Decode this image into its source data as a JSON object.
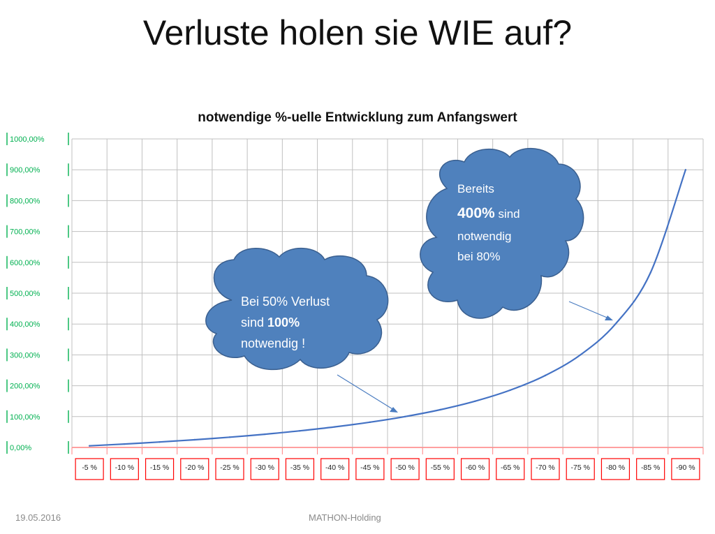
{
  "slide": {
    "title": "Verluste holen sie WIE auf?",
    "footer_date": "19.05.2016",
    "footer_center": "MATHON-Holding"
  },
  "colors": {
    "line": "#4472c4",
    "grid": "#c0c0c0",
    "ytick": "#00b050",
    "xtick_box": "#ff0000",
    "cloud_fill": "#4f81bd",
    "cloud_stroke": "#3a5f8f",
    "arrow": "#4a7cc0"
  },
  "annotations": {
    "cloud_left": {
      "line1": "Bei 50% Verlust",
      "line2_pre": "sind ",
      "line2_bold": "100%",
      "line3": "notwendig !"
    },
    "cloud_right": {
      "line1": "Bereits",
      "line2_bold": "400%",
      "line2_post": " sind",
      "line3": "notwendig",
      "line4": "bei 80%"
    }
  },
  "chart_data": {
    "type": "line",
    "title": "notwendige %-uelle Entwicklung  zum Anfangswert",
    "xlabel": "",
    "ylabel": "",
    "ylim": [
      0,
      1000
    ],
    "grid": true,
    "categories": [
      "-5 %",
      "-10 %",
      "-15 %",
      "-20 %",
      "-25 %",
      "-30 %",
      "-35 %",
      "-40 %",
      "-45 %",
      "-50 %",
      "-55 %",
      "-60 %",
      "-65 %",
      "-70 %",
      "-75 %",
      "-80 %",
      "-85 %",
      "-90 %"
    ],
    "ytick_labels": [
      "0,00%",
      "100,00%",
      "200,00%",
      "300,00%",
      "400,00%",
      "500,00%",
      "600,00%",
      "700,00%",
      "800,00%",
      "900,00%",
      "1000,00%"
    ],
    "series": [
      {
        "values": [
          5.26,
          11.11,
          17.65,
          25.0,
          33.33,
          42.86,
          53.85,
          66.67,
          81.82,
          100.0,
          122.22,
          150.0,
          185.71,
          233.33,
          300.0,
          400.0,
          566.67,
          900.0
        ]
      }
    ]
  }
}
